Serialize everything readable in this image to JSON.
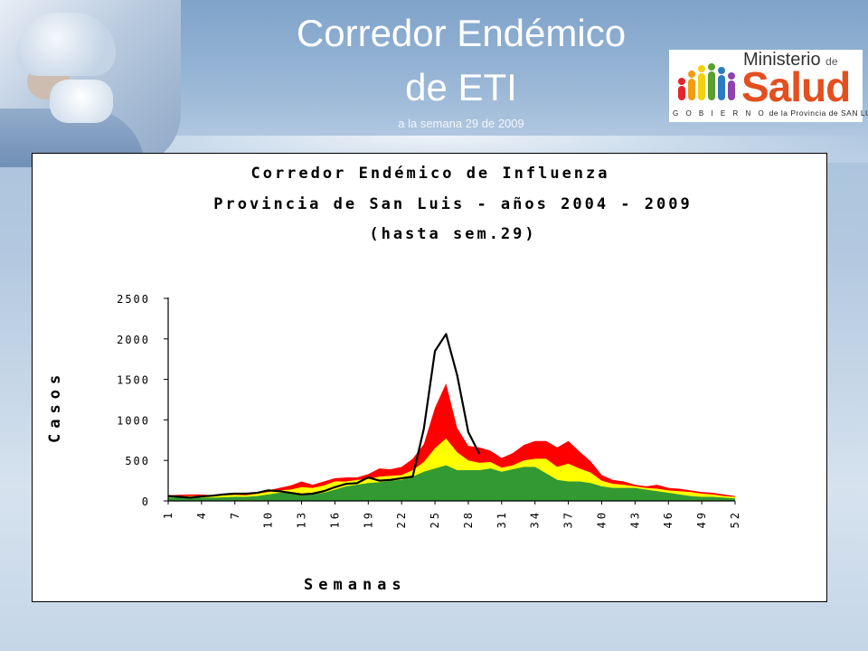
{
  "header": {
    "title_line1": "Corredor Endémico",
    "title_line2": "de ETI",
    "subtitle": "a la semana 29 de 2009"
  },
  "logo": {
    "line1": "Ministerio",
    "line1_small": "de",
    "line2": "Salud",
    "line3_spaced": "G O B I E R N O",
    "line3_rest": "de la Provincia de SAN LUIS",
    "colors": [
      "#e7232c",
      "#f39c12",
      "#f2d20f",
      "#5aa02c",
      "#2c7bc0",
      "#8e44ad"
    ]
  },
  "chart_data": {
    "type": "area",
    "title": [
      "Corredor Endémico de Influenza",
      "Provincia de San Luis - años 2004 - 2009",
      "(hasta sem.29)"
    ],
    "xlabel": "Semanas",
    "ylabel": "Casos",
    "ylim": [
      0,
      2500
    ],
    "yticks": [
      0,
      500,
      1000,
      1500,
      2000,
      2500
    ],
    "xtick_labels": [
      "1",
      "4",
      "7",
      "10",
      "13",
      "16",
      "19",
      "22",
      "25",
      "28",
      "31",
      "34",
      "37",
      "40",
      "43",
      "46",
      "49",
      "52"
    ],
    "xtick_weeks": [
      1,
      4,
      7,
      10,
      13,
      16,
      19,
      22,
      25,
      28,
      31,
      34,
      37,
      40,
      43,
      46,
      49,
      52
    ],
    "legend": "none",
    "grid": false,
    "weeks": [
      1,
      2,
      3,
      4,
      5,
      6,
      7,
      8,
      9,
      10,
      11,
      12,
      13,
      14,
      15,
      16,
      17,
      18,
      19,
      20,
      21,
      22,
      23,
      24,
      25,
      26,
      27,
      28,
      29,
      30,
      31,
      32,
      33,
      34,
      35,
      36,
      37,
      38,
      39,
      40,
      41,
      42,
      43,
      44,
      45,
      46,
      47,
      48,
      49,
      50,
      51,
      52
    ],
    "series": [
      {
        "name": "",
        "color": "#ff0000",
        "values": [
          70,
          75,
          80,
          80,
          70,
          80,
          90,
          80,
          100,
          130,
          160,
          190,
          240,
          200,
          240,
          280,
          290,
          290,
          330,
          400,
          390,
          420,
          520,
          700,
          1150,
          1450,
          900,
          680,
          660,
          620,
          530,
          590,
          690,
          740,
          740,
          660,
          740,
          610,
          490,
          320,
          260,
          240,
          200,
          180,
          200,
          160,
          150,
          130,
          110,
          100,
          80,
          60
        ]
      },
      {
        "name": "",
        "color": "#ffff00",
        "values": [
          60,
          60,
          60,
          60,
          60,
          70,
          75,
          70,
          90,
          110,
          130,
          140,
          170,
          160,
          190,
          240,
          240,
          260,
          270,
          300,
          310,
          320,
          380,
          480,
          650,
          770,
          600,
          500,
          470,
          480,
          410,
          440,
          500,
          520,
          520,
          420,
          460,
          400,
          350,
          250,
          210,
          200,
          180,
          160,
          150,
          130,
          120,
          110,
          90,
          80,
          60,
          50
        ]
      },
      {
        "name": "",
        "color": "#339933",
        "values": [
          40,
          40,
          40,
          40,
          40,
          45,
          50,
          50,
          60,
          80,
          100,
          100,
          90,
          80,
          100,
          140,
          180,
          200,
          220,
          230,
          250,
          260,
          300,
          360,
          400,
          440,
          380,
          380,
          380,
          400,
          360,
          390,
          420,
          420,
          340,
          260,
          240,
          240,
          220,
          180,
          160,
          160,
          160,
          140,
          120,
          100,
          80,
          60,
          50,
          50,
          40,
          30
        ]
      }
    ],
    "line_2009": {
      "name": "",
      "color": "#000000",
      "values": [
        60,
        50,
        40,
        55,
        65,
        80,
        90,
        90,
        100,
        130,
        120,
        100,
        80,
        90,
        120,
        170,
        210,
        220,
        290,
        250,
        260,
        280,
        300,
        890,
        1850,
        2060,
        1550,
        850,
        580
      ]
    }
  }
}
